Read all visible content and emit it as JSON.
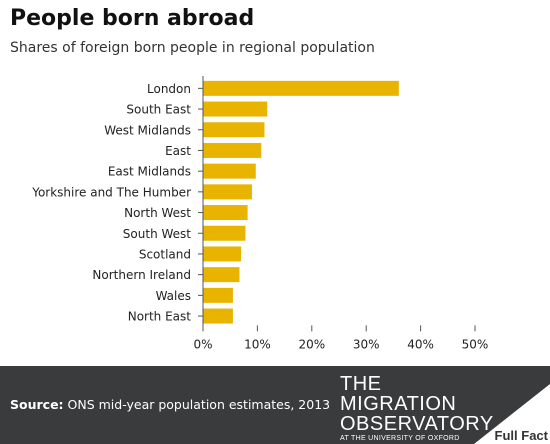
{
  "header": {
    "title": "People born abroad",
    "subtitle": "Shares of foreign born people in regional population"
  },
  "chart_data": {
    "type": "bar",
    "orientation": "horizontal",
    "title": "People born abroad",
    "subtitle": "Shares of foreign born people in regional population",
    "categories": [
      "London",
      "South East",
      "West Midlands",
      "East",
      "East Midlands",
      "Yorkshire and The Humber",
      "North West",
      "South West",
      "Scotland",
      "Northern Ireland",
      "Wales",
      "North East"
    ],
    "values": [
      36.0,
      11.8,
      11.3,
      10.7,
      9.7,
      9.0,
      8.2,
      7.8,
      7.0,
      6.7,
      5.5,
      5.5
    ],
    "xlim": [
      0,
      50
    ],
    "xticks": [
      "0%",
      "10%",
      "20%",
      "30%",
      "40%",
      "50%"
    ],
    "xtick_values": [
      0,
      10,
      20,
      30,
      40,
      50
    ],
    "grid": false,
    "bar_color": "#e8b400"
  },
  "footer": {
    "source_label": "Source:",
    "source_text": " ONS mid-year population estimates, 2013",
    "logo_line1": "THE",
    "logo_line2": "MIGRATION",
    "logo_line3": "OBSERVATORY",
    "logo_line4": "AT THE UNIVERSITY OF OXFORD",
    "brand": "Full Fact"
  },
  "colors": {
    "footer_bg": "#3a3b3c",
    "bar": "#e8b400",
    "fullfact_bg": "#ffffff"
  }
}
